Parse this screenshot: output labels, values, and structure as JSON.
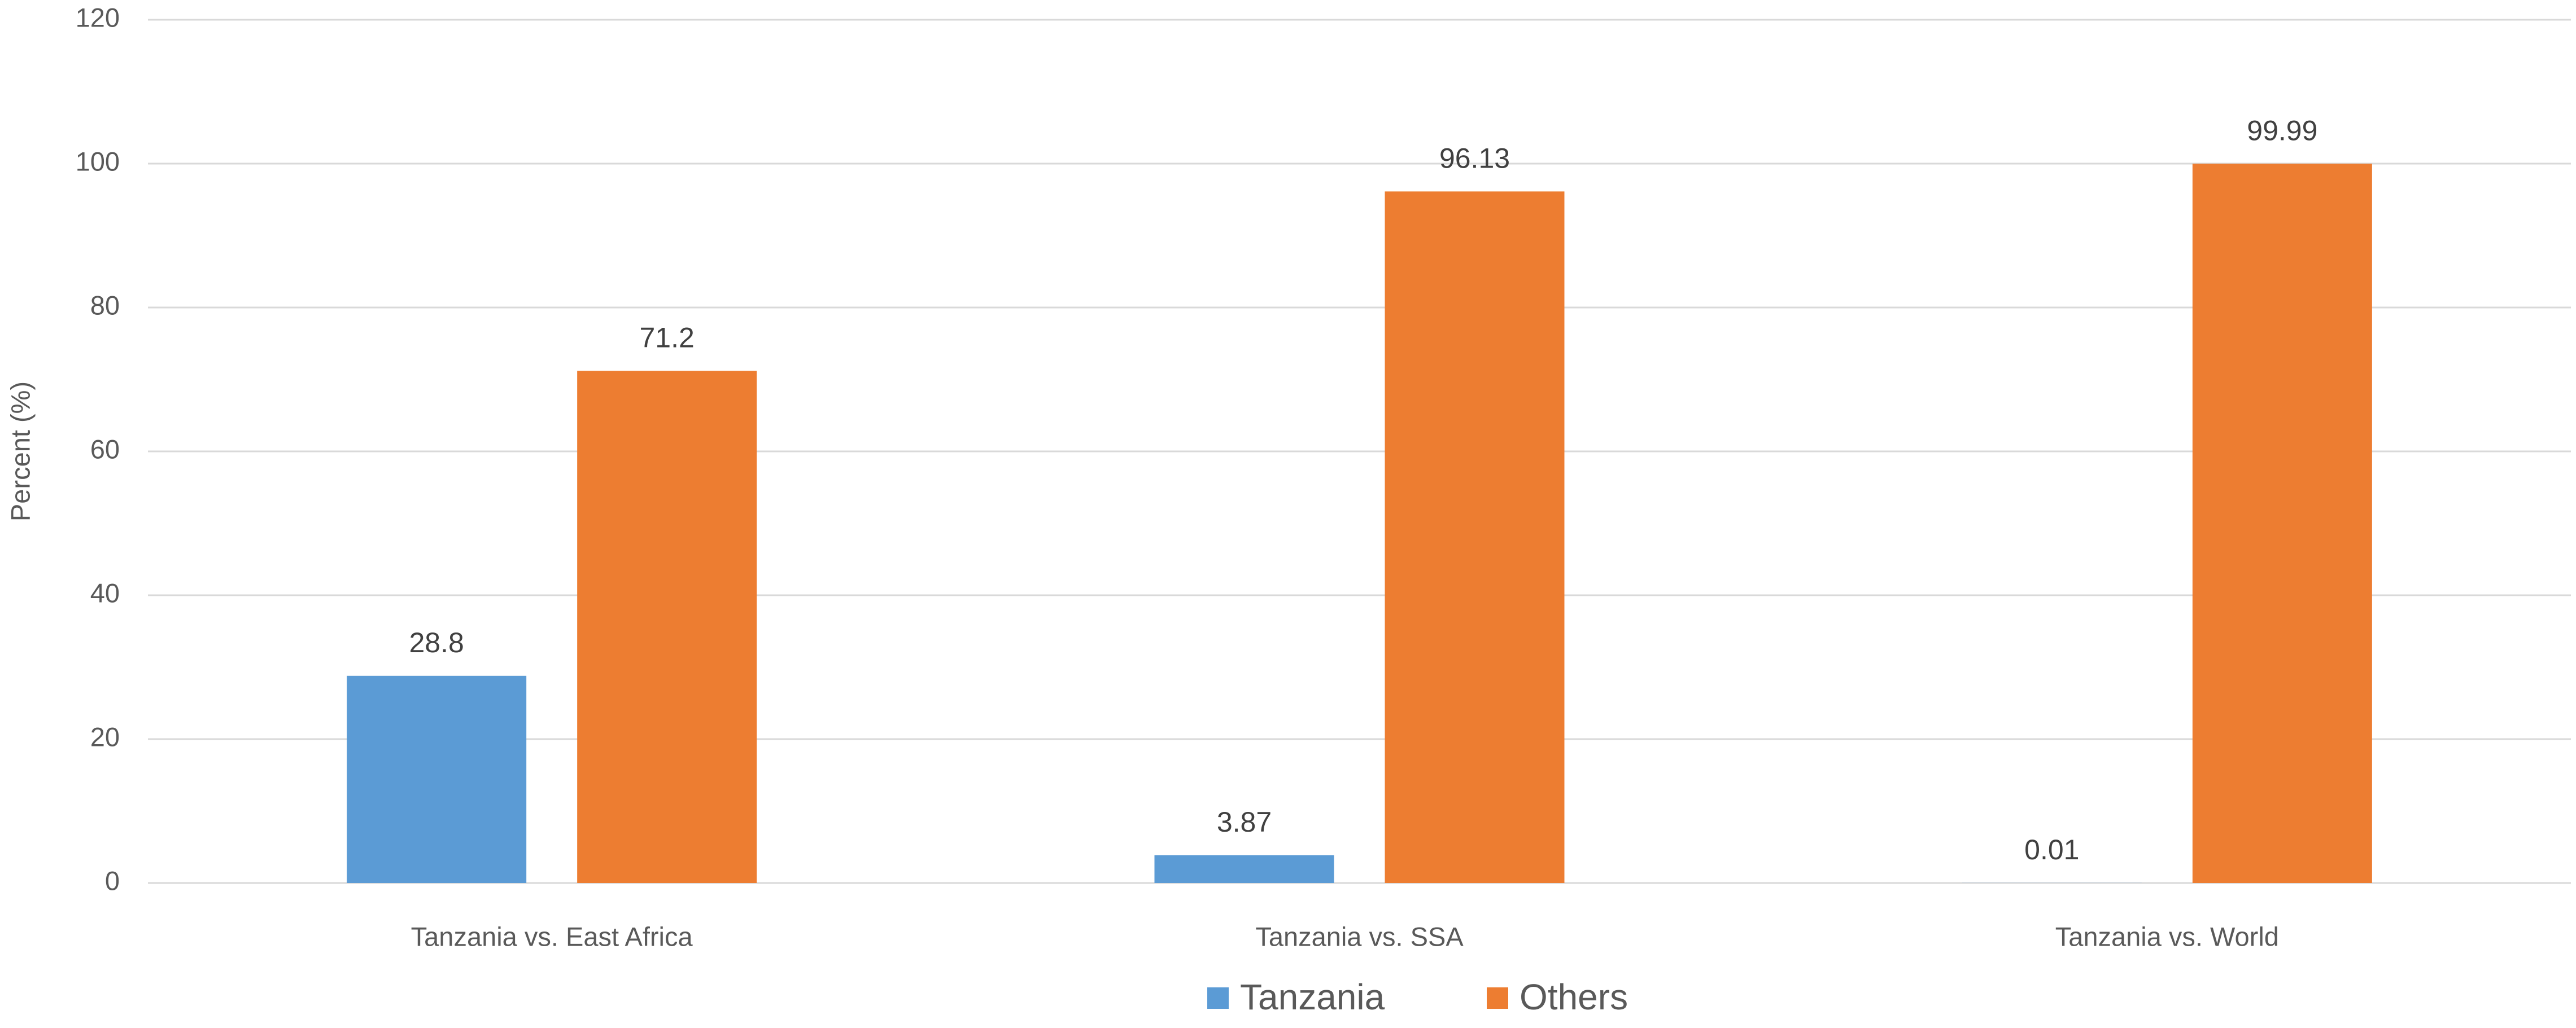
{
  "chart_data": {
    "type": "bar",
    "y_label": "Percent (%)",
    "categories": [
      "Tanzania vs. East Africa",
      "Tanzania vs. SSA",
      "Tanzania vs. World"
    ],
    "series": [
      {
        "name": "Tanzania",
        "color": "#5b9bd5",
        "values": [
          28.8,
          3.87,
          0.01
        ]
      },
      {
        "name": "Others",
        "color": "#ed7d31",
        "values": [
          71.2,
          96.13,
          99.99
        ]
      }
    ],
    "ylim": [
      0,
      120
    ],
    "yticks": [
      0,
      20,
      40,
      60,
      80,
      100,
      120
    ],
    "grid": true,
    "legend": "bottom"
  }
}
